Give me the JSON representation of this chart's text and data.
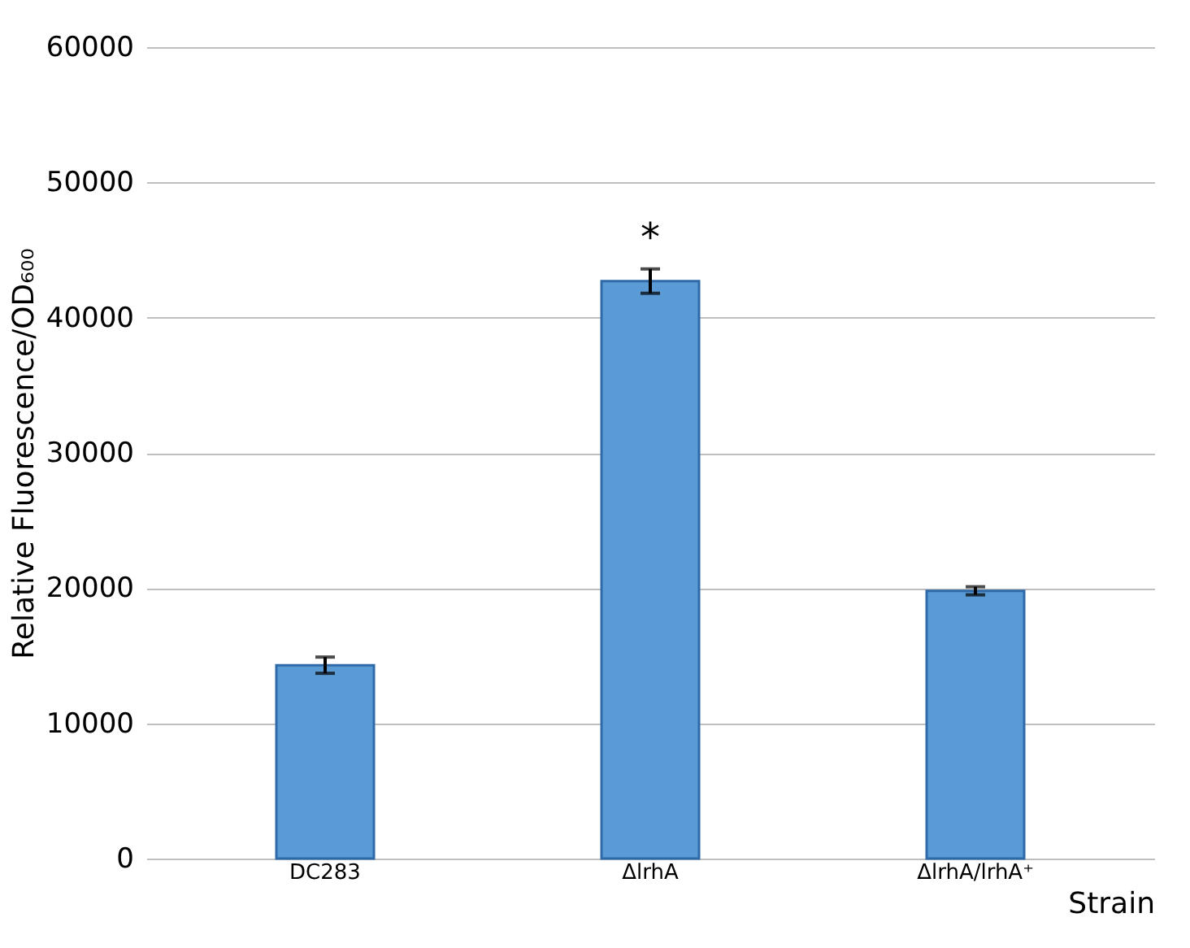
{
  "chart_data": {
    "type": "bar",
    "xlabel": "Strain",
    "ylabel": "Relative Fluorescence/OD₆₀₀",
    "categories": [
      "DC283",
      "ΔlrhA",
      "ΔlrhA/lrhA⁺"
    ],
    "values": [
      14300,
      42700,
      19800
    ],
    "errors": [
      600,
      900,
      300
    ],
    "color": "#5b9bd5",
    "ylim": [
      0,
      60000
    ],
    "yticks": [
      0,
      10000,
      20000,
      30000,
      40000,
      50000,
      60000
    ],
    "grid": "y",
    "annotations": [
      {
        "text": "*",
        "x": "ΔlrhA",
        "y": 42700
      }
    ]
  }
}
